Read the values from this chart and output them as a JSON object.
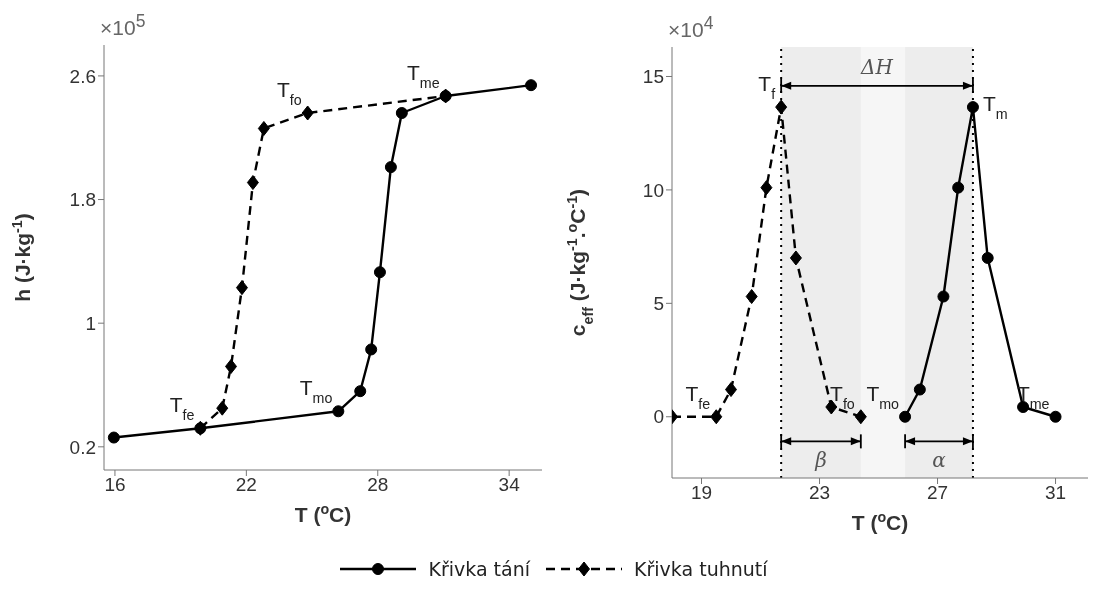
{
  "chart_data": [
    {
      "type": "line",
      "xlabel": "T ($^{o}$C)",
      "ylabel": "h (J·kg$^{-1}$)",
      "xlim": [
        15.5,
        35.5
      ],
      "xticks": [
        16,
        22,
        28,
        34
      ],
      "ylim": [
        0.05,
        2.8
      ],
      "yticks": [
        0.2,
        1,
        1.8,
        2.6
      ],
      "legend": "bottom",
      "annotations": [
        "×10$^{5}$",
        {
          "text": "T$_{fo}$",
          "x": 24.8,
          "y": 2.36
        },
        {
          "text": "T$_{me}$",
          "x": 31.1,
          "y": 2.47
        },
        {
          "text": "T$_{fe}$",
          "x": 19.9,
          "y": 0.32
        },
        {
          "text": "T$_{mo}$",
          "x": 26.2,
          "y": 0.43
        }
      ],
      "series": [
        {
          "name": "Křivka tání",
          "color": "#000000",
          "marker": "circle",
          "line_style": "solid",
          "x": [
            15.95,
            19.9,
            26.2,
            27.2,
            27.7,
            28.1,
            28.6,
            29.1,
            31.1,
            35.0
          ],
          "values": [
            0.26,
            0.32,
            0.43,
            0.56,
            0.83,
            1.33,
            2.01,
            2.36,
            2.47,
            2.54
          ]
        },
        {
          "name": "Křivka tuhnutí",
          "color": "#000000",
          "marker": "diamond",
          "line_style": "dashed",
          "x": [
            19.9,
            20.9,
            21.3,
            21.8,
            22.3,
            22.8,
            24.8,
            31.1
          ],
          "values": [
            0.32,
            0.45,
            0.72,
            1.23,
            1.91,
            2.26,
            2.36,
            2.47
          ]
        }
      ]
    },
    {
      "type": "line",
      "xlabel": "T ($^{o}$C)",
      "ylabel": "c$_{eff}$ (J·kg$^{-1}$.$^{o}$C$^{-1}$)",
      "xlim": [
        18,
        32.1
      ],
      "xticks": [
        19,
        23,
        27,
        31
      ],
      "ylim": [
        -2.7,
        16.3
      ],
      "yticks": [
        0,
        5,
        10,
        15
      ],
      "annotations": [
        "×10$^{4}$",
        {
          "text": "T$_{f}$",
          "x": 21.7,
          "y": 13.65
        },
        {
          "text": "T$_{m}$",
          "x": 28.2,
          "y": 13.65
        },
        {
          "text": "T$_{fe}$",
          "x": 19.5,
          "y": 0
        },
        {
          "text": "T$_{fo}$",
          "x": 24.4,
          "y": 0
        },
        {
          "text": "T$_{mo}$",
          "x": 25.9,
          "y": 0
        },
        {
          "text": "T$_{me}$",
          "x": 31.0,
          "y": 0
        }
      ],
      "ref_lines": [
        {
          "axis": "x",
          "value": 21.7,
          "color": "#000000",
          "line_style": "dotted"
        },
        {
          "axis": "x",
          "value": 28.2,
          "color": "#000000",
          "line_style": "dotted"
        }
      ],
      "bands": [
        {
          "axis": "x",
          "from": 21.7,
          "to": 28.2,
          "label": "ΔH"
        },
        {
          "axis": "x",
          "from": 21.7,
          "to": 24.4,
          "label": "β"
        },
        {
          "axis": "x",
          "from": 25.9,
          "to": 28.2,
          "label": "α"
        }
      ],
      "series": [
        {
          "color": "#000000",
          "marker": "circle",
          "line_style": "solid",
          "x": [
            25.9,
            26.4,
            27.2,
            27.7,
            28.2,
            28.7,
            29.9,
            31.0
          ],
          "values": [
            0,
            1.2,
            5.3,
            10.1,
            13.65,
            7.0,
            0.43,
            0
          ]
        },
        {
          "color": "#000000",
          "marker": "diamond",
          "line_style": "dashed",
          "x": [
            18.0,
            19.5,
            20.0,
            20.7,
            21.2,
            21.7,
            22.2,
            23.4,
            24.4
          ],
          "values": [
            0,
            0,
            1.2,
            5.3,
            10.1,
            13.65,
            7.0,
            0.43,
            0
          ]
        }
      ]
    }
  ]
}
